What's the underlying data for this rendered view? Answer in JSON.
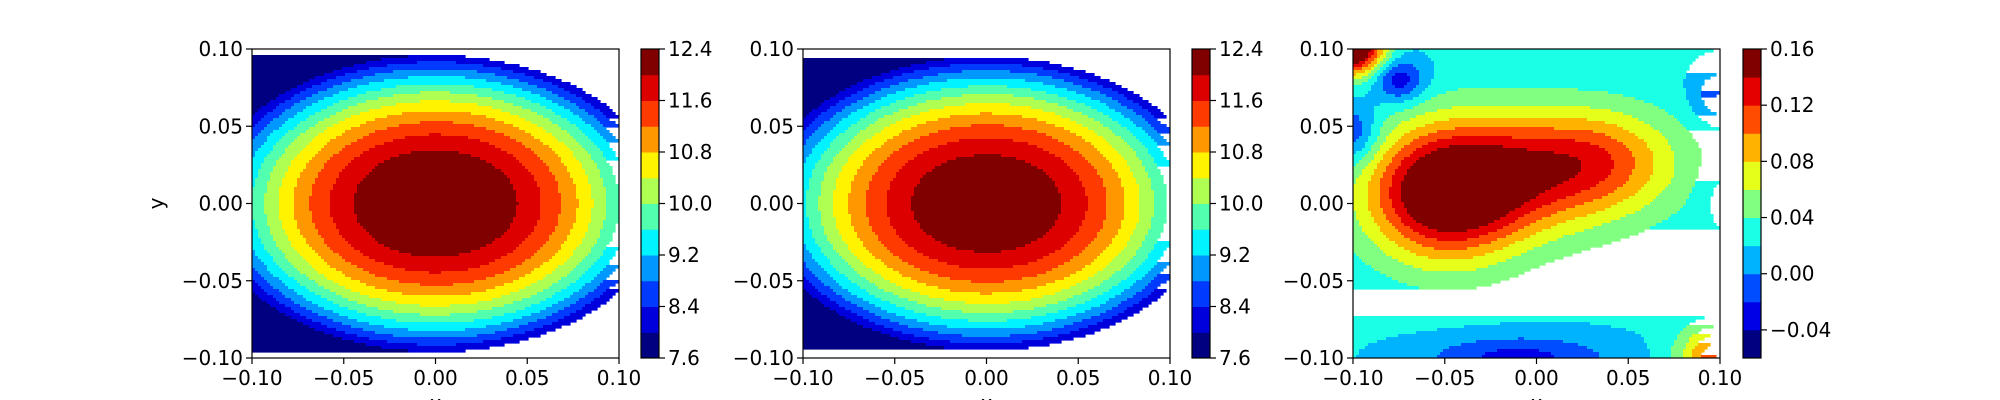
{
  "chart_data": [
    {
      "type": "contour",
      "title": "",
      "xlabel": "x",
      "ylabel": "y",
      "xlim": [
        -0.1,
        0.1
      ],
      "ylim": [
        -0.1,
        0.1
      ],
      "x_ticks": [
        "−0.10",
        "−0.05",
        "0.00",
        "0.05",
        "0.10"
      ],
      "y_ticks": [
        "−0.10",
        "−0.05",
        "0.00",
        "0.05",
        "0.10"
      ],
      "field": {
        "center_x": 0.0,
        "center_y": 0.0,
        "peak": 12.6,
        "x_decay": 300,
        "y_decay": 500
      },
      "colorbar": {
        "levels": [
          7.6,
          8.0,
          8.4,
          8.8,
          9.2,
          9.6,
          10.0,
          10.4,
          10.8,
          11.2,
          11.6,
          12.0,
          12.4
        ],
        "tick_values": [
          7.6,
          8.4,
          9.2,
          10.0,
          10.8,
          11.6,
          12.4
        ],
        "tick_labels": [
          "7.6",
          "8.4",
          "9.2",
          "10.0",
          "10.8",
          "11.6",
          "12.4"
        ]
      }
    },
    {
      "type": "contour",
      "title": "",
      "xlabel": "x",
      "ylabel": "",
      "xlim": [
        -0.1,
        0.1
      ],
      "ylim": [
        -0.1,
        0.1
      ],
      "x_ticks": [
        "−0.10",
        "−0.05",
        "0.00",
        "0.05",
        "0.10"
      ],
      "y_ticks": [
        "−0.10",
        "−0.05",
        "0.00",
        "0.05",
        "0.10"
      ],
      "field": {
        "center_x": 0.0,
        "center_y": 0.0,
        "peak": 12.5,
        "x_decay": 300,
        "y_decay": 500
      },
      "colorbar": {
        "levels": [
          7.6,
          8.0,
          8.4,
          8.8,
          9.2,
          9.6,
          10.0,
          10.4,
          10.8,
          11.2,
          11.6,
          12.0,
          12.4
        ],
        "tick_values": [
          7.6,
          8.4,
          9.2,
          10.0,
          10.8,
          11.6,
          12.4
        ],
        "tick_labels": [
          "7.6",
          "8.4",
          "9.2",
          "10.0",
          "10.8",
          "11.6",
          "12.4"
        ]
      }
    },
    {
      "type": "contour",
      "title": "",
      "xlabel": "x",
      "ylabel": "",
      "xlim": [
        -0.1,
        0.1
      ],
      "ylim": [
        -0.1,
        0.1
      ],
      "x_ticks": [
        "−0.10",
        "−0.05",
        "0.00",
        "0.05",
        "0.10"
      ],
      "y_ticks": [
        "−0.10",
        "−0.05",
        "0.00",
        "0.05",
        "0.10"
      ],
      "field": {
        "center_x": -0.05,
        "center_y": 0.005,
        "peak": 0.16,
        "ridge_end_x": 0.035,
        "ridge_end_y": 0.03
      },
      "colorbar": {
        "levels": [
          -0.06,
          -0.04,
          -0.02,
          0.0,
          0.02,
          0.04,
          0.06,
          0.08,
          0.1,
          0.12,
          0.14,
          0.16
        ],
        "tick_values": [
          -0.04,
          0.0,
          0.04,
          0.08,
          0.12,
          0.16
        ],
        "tick_labels": [
          "−0.04",
          "0.00",
          "0.04",
          "0.08",
          "0.12",
          "0.16"
        ]
      }
    }
  ]
}
